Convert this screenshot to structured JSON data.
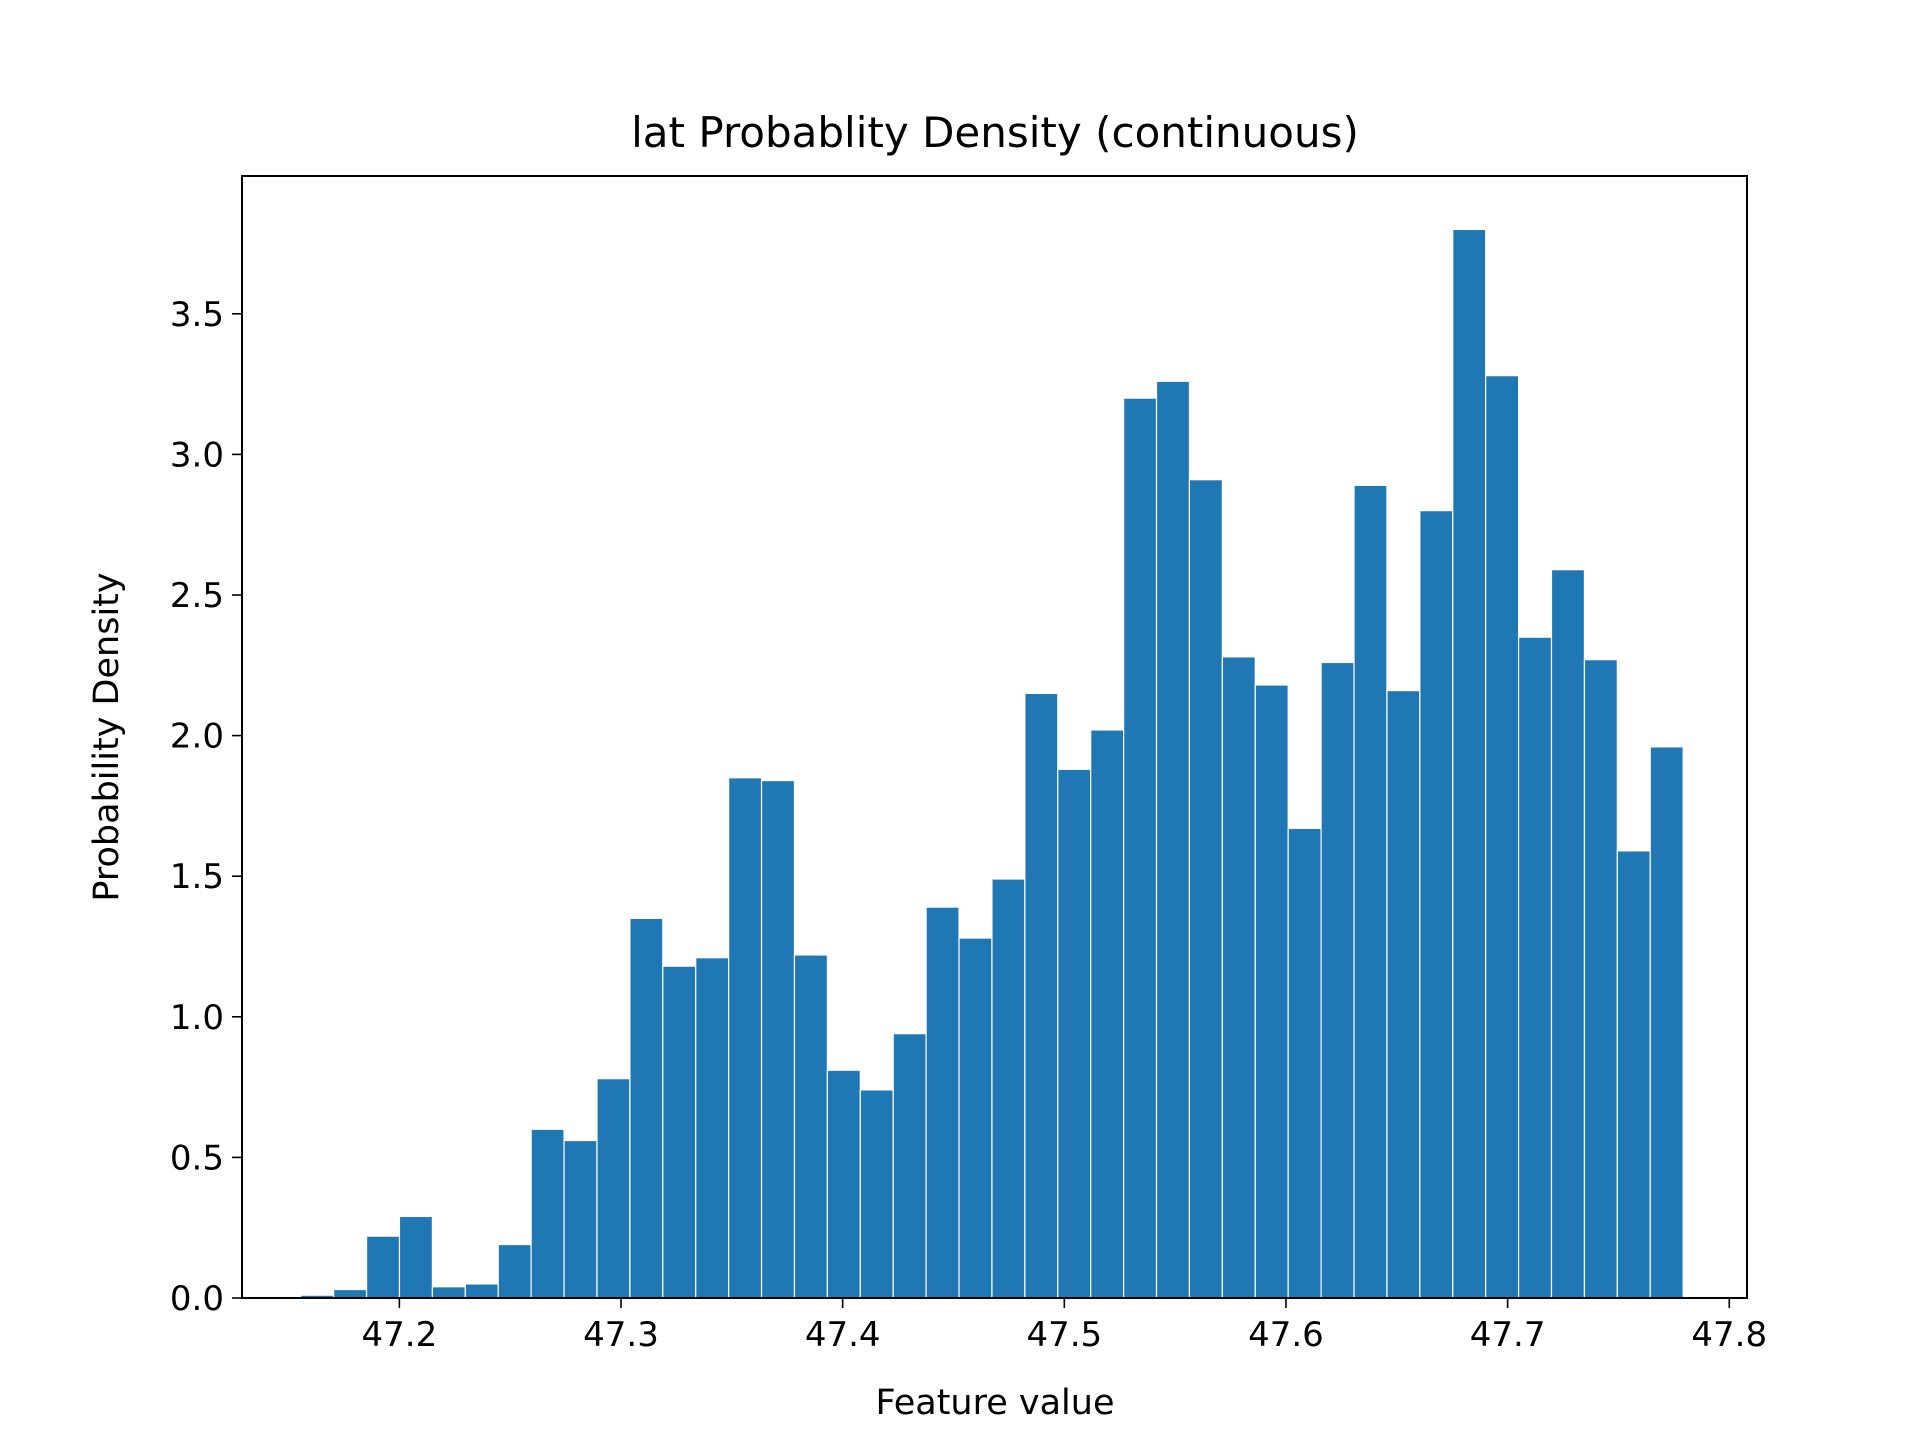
{
  "chart_data": {
    "type": "bar",
    "title": "lat Probablity Density (continuous)",
    "xlabel": "Feature value",
    "ylabel": "Probability Density",
    "xlim": [
      47.129,
      47.808
    ],
    "ylim": [
      0,
      3.99
    ],
    "x_ticks": [
      47.2,
      47.3,
      47.4,
      47.5,
      47.6,
      47.7,
      47.8
    ],
    "x_tick_labels": [
      "47.2",
      "47.3",
      "47.4",
      "47.5",
      "47.6",
      "47.7",
      "47.8"
    ],
    "y_ticks": [
      0,
      0.5,
      1.0,
      1.5,
      2.0,
      2.5,
      3.0,
      3.5
    ],
    "y_tick_labels": [
      "0.0",
      "0.5",
      "1.0",
      "1.5",
      "2.0",
      "2.5",
      "3.0",
      "3.5"
    ],
    "bar_color": "#1f77b4",
    "bar_edge_color": "#ffffff",
    "grid": false,
    "legend": "none",
    "bins": {
      "start": 47.1555,
      "width": 0.01485,
      "values": [
        0.01,
        0.03,
        0.22,
        0.29,
        0.04,
        0.05,
        0.19,
        0.6,
        0.56,
        0.78,
        1.35,
        1.18,
        1.21,
        1.85,
        1.84,
        1.22,
        0.81,
        0.74,
        0.94,
        1.39,
        1.28,
        1.49,
        2.15,
        1.88,
        2.02,
        3.2,
        3.26,
        2.91,
        2.28,
        2.18,
        1.67,
        2.26,
        2.89,
        2.16,
        2.8,
        3.8,
        3.28,
        2.35,
        2.59,
        2.27,
        1.59,
        1.96
      ]
    }
  }
}
